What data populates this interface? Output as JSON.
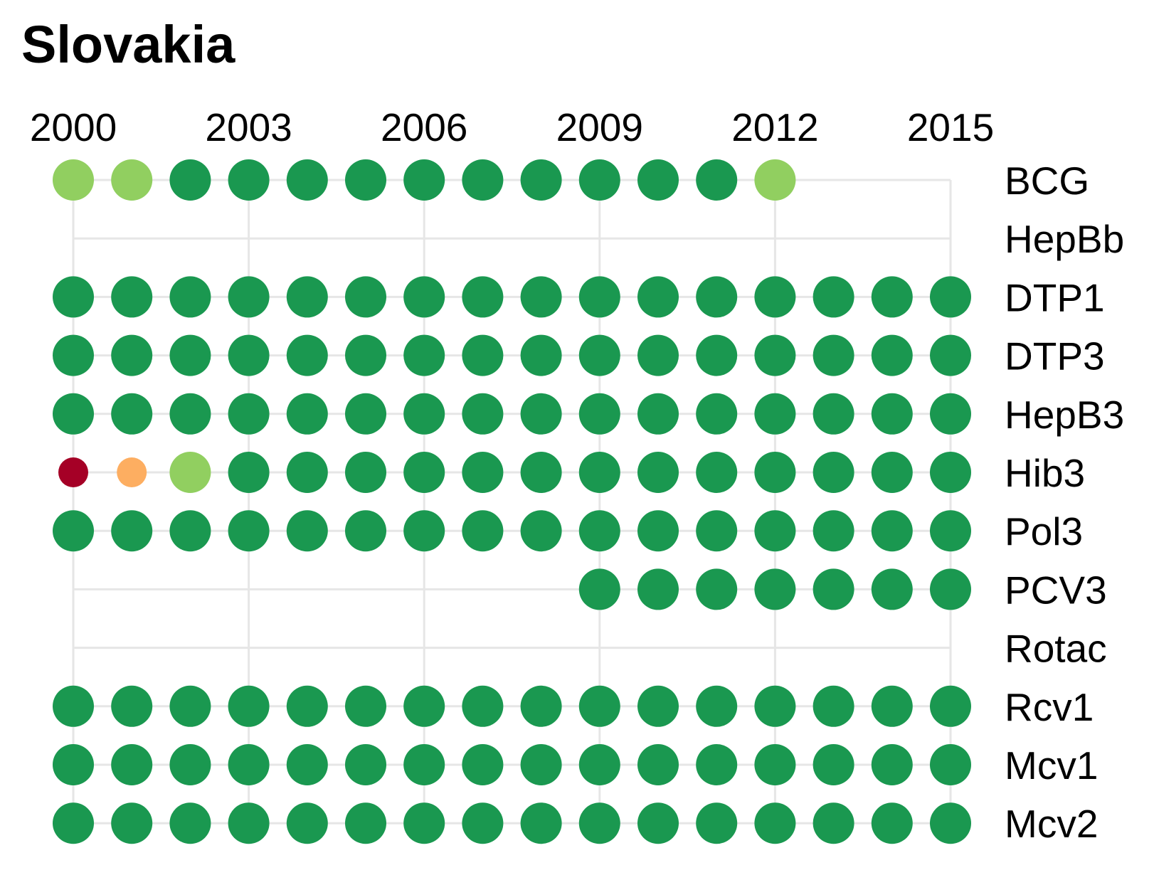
{
  "chart_data": {
    "type": "dot-matrix",
    "title": "Slovakia",
    "x": [
      2000,
      2001,
      2002,
      2003,
      2004,
      2005,
      2006,
      2007,
      2008,
      2009,
      2010,
      2011,
      2012,
      2013,
      2014,
      2015
    ],
    "x_tick_labels": [
      "2000",
      "2003",
      "2006",
      "2009",
      "2012",
      "2015"
    ],
    "x_tick_values": [
      2000,
      2003,
      2006,
      2009,
      2012,
      2015
    ],
    "grid": true,
    "colors": {
      "high": "#1a9850",
      "mid": "#91cf60",
      "low_mid": "#fdae61",
      "low": "#a50026",
      "grid": "#e6e6e6"
    },
    "size_levels": {
      "large": 1.0,
      "medium": 0.75
    },
    "series": [
      {
        "name": "BCG",
        "values": [
          "mid",
          "mid",
          "high",
          "high",
          "high",
          "high",
          "high",
          "high",
          "high",
          "high",
          "high",
          "high",
          "mid",
          null,
          null,
          null
        ]
      },
      {
        "name": "HepBb",
        "values": [
          null,
          null,
          null,
          null,
          null,
          null,
          null,
          null,
          null,
          null,
          null,
          null,
          null,
          null,
          null,
          null
        ]
      },
      {
        "name": "DTP1",
        "values": [
          "high",
          "high",
          "high",
          "high",
          "high",
          "high",
          "high",
          "high",
          "high",
          "high",
          "high",
          "high",
          "high",
          "high",
          "high",
          "high"
        ]
      },
      {
        "name": "DTP3",
        "values": [
          "high",
          "high",
          "high",
          "high",
          "high",
          "high",
          "high",
          "high",
          "high",
          "high",
          "high",
          "high",
          "high",
          "high",
          "high",
          "high"
        ]
      },
      {
        "name": "HepB3",
        "values": [
          "high",
          "high",
          "high",
          "high",
          "high",
          "high",
          "high",
          "high",
          "high",
          "high",
          "high",
          "high",
          "high",
          "high",
          "high",
          "high"
        ]
      },
      {
        "name": "Hib3",
        "values": [
          "low",
          "low_mid",
          "mid",
          "high",
          "high",
          "high",
          "high",
          "high",
          "high",
          "high",
          "high",
          "high",
          "high",
          "high",
          "high",
          "high"
        ]
      },
      {
        "name": "Pol3",
        "values": [
          "high",
          "high",
          "high",
          "high",
          "high",
          "high",
          "high",
          "high",
          "high",
          "high",
          "high",
          "high",
          "high",
          "high",
          "high",
          "high"
        ]
      },
      {
        "name": "PCV3",
        "values": [
          null,
          null,
          null,
          null,
          null,
          null,
          null,
          null,
          null,
          "high",
          "high",
          "high",
          "high",
          "high",
          "high",
          "high"
        ]
      },
      {
        "name": "Rotac",
        "values": [
          null,
          null,
          null,
          null,
          null,
          null,
          null,
          null,
          null,
          null,
          null,
          null,
          null,
          null,
          null,
          null
        ]
      },
      {
        "name": "Rcv1",
        "values": [
          "high",
          "high",
          "high",
          "high",
          "high",
          "high",
          "high",
          "high",
          "high",
          "high",
          "high",
          "high",
          "high",
          "high",
          "high",
          "high"
        ]
      },
      {
        "name": "Mcv1",
        "values": [
          "high",
          "high",
          "high",
          "high",
          "high",
          "high",
          "high",
          "high",
          "high",
          "high",
          "high",
          "high",
          "high",
          "high",
          "high",
          "high"
        ]
      },
      {
        "name": "Mcv2",
        "values": [
          "high",
          "high",
          "high",
          "high",
          "high",
          "high",
          "high",
          "high",
          "high",
          "high",
          "high",
          "high",
          "high",
          "high",
          "high",
          "high"
        ]
      }
    ]
  }
}
